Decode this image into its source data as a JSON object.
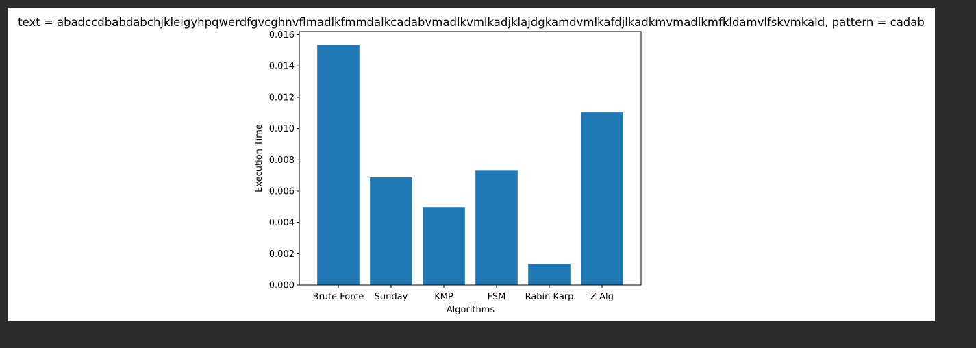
{
  "chart_data": {
    "type": "bar",
    "title": "text = abadccdbabdabchjkleigyhpqwerdfgvcghnvflmadlkfmmdalkcadabvmadlkvmlkadjklajdgkamdvmlkafdjlkadkmvmadlkmfkldamvlfskvmkald, pattern = cadab",
    "xlabel": "Algorithms",
    "ylabel": "Execution Time",
    "categories": [
      "Brute Force",
      "Sunday",
      "KMP",
      "FSM",
      "Rabin Karp",
      "Z Alg"
    ],
    "values": [
      0.01535,
      0.00688,
      0.00498,
      0.00734,
      0.00133,
      0.01103
    ],
    "ylim": [
      0,
      0.0162
    ],
    "yticks": [
      "0.000",
      "0.002",
      "0.004",
      "0.006",
      "0.008",
      "0.010",
      "0.012",
      "0.014",
      "0.016"
    ],
    "bar_color": "#1f77b4",
    "grid": false
  }
}
